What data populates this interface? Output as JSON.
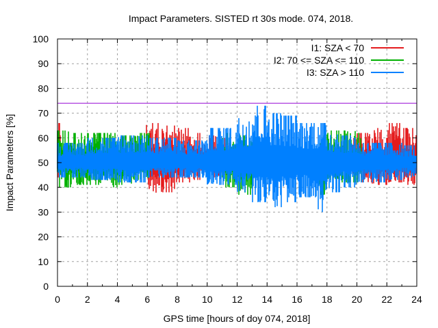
{
  "chart_data": {
    "type": "line",
    "style": "impulses",
    "title": "Impact Parameters. SISTED rt 30s mode. 074, 2018.",
    "xlabel": "GPS time [hours of doy 074, 2018]",
    "ylabel": "Impact Parameters [%]",
    "xlim": [
      0,
      24
    ],
    "ylim": [
      0,
      100
    ],
    "xticks": [
      "0",
      "2",
      "4",
      "6",
      "8",
      "10",
      "12",
      "14",
      "16",
      "18",
      "20",
      "22",
      "24"
    ],
    "yticks": [
      "0",
      "10",
      "20",
      "30",
      "40",
      "50",
      "60",
      "70",
      "80",
      "90",
      "100"
    ],
    "grid": true,
    "legend_position": "top-right",
    "reference_line": {
      "name": "threshold",
      "y": 74,
      "color": "#9400d3"
    },
    "series": [
      {
        "name": "I1: SZA < 70",
        "color": "#e41a1c",
        "active_hours": [
          [
            0,
            0.3
          ],
          [
            5.9,
            11.5
          ],
          [
            19.7,
            24
          ]
        ],
        "baseline": 50,
        "envelope_by_hour": [
          {
            "hour": 0,
            "max": 66,
            "min": 44
          },
          {
            "hour": 6,
            "max": 66,
            "min": 37
          },
          {
            "hour": 7,
            "max": 65,
            "min": 38
          },
          {
            "hour": 8,
            "max": 64,
            "min": 42
          },
          {
            "hour": 9,
            "max": 62,
            "min": 43
          },
          {
            "hour": 10,
            "max": 61,
            "min": 44
          },
          {
            "hour": 11,
            "max": 60,
            "min": 45
          },
          {
            "hour": 20,
            "max": 62,
            "min": 42
          },
          {
            "hour": 21,
            "max": 64,
            "min": 41
          },
          {
            "hour": 22,
            "max": 66,
            "min": 42
          },
          {
            "hour": 23,
            "max": 64,
            "min": 41
          }
        ]
      },
      {
        "name": "I2: 70 <= SZA <= 110",
        "color": "#00b000",
        "active_hours": [
          [
            0,
            6.2
          ],
          [
            11.0,
            13.0
          ],
          [
            17.5,
            20.3
          ]
        ],
        "baseline": 50,
        "envelope_by_hour": [
          {
            "hour": 0,
            "max": 63,
            "min": 40
          },
          {
            "hour": 1,
            "max": 62,
            "min": 41
          },
          {
            "hour": 2,
            "max": 62,
            "min": 41
          },
          {
            "hour": 3,
            "max": 62,
            "min": 40
          },
          {
            "hour": 4,
            "max": 61,
            "min": 41
          },
          {
            "hour": 5,
            "max": 62,
            "min": 43
          },
          {
            "hour": 11,
            "max": 62,
            "min": 40
          },
          {
            "hour": 12,
            "max": 61,
            "min": 37
          },
          {
            "hour": 18,
            "max": 63,
            "min": 43
          },
          {
            "hour": 19,
            "max": 63,
            "min": 42
          },
          {
            "hour": 20,
            "max": 62,
            "min": 42
          }
        ]
      },
      {
        "name": "I3: SZA > 110",
        "color": "#0080ff",
        "active_hours": [
          [
            0,
            24
          ]
        ],
        "baseline": 50,
        "envelope_by_hour": [
          {
            "hour": 0,
            "max": 58,
            "min": 44
          },
          {
            "hour": 2,
            "max": 60,
            "min": 43
          },
          {
            "hour": 4,
            "max": 61,
            "min": 42
          },
          {
            "hour": 6,
            "max": 60,
            "min": 44
          },
          {
            "hour": 8,
            "max": 59,
            "min": 44
          },
          {
            "hour": 10,
            "max": 64,
            "min": 41
          },
          {
            "hour": 12,
            "max": 68,
            "min": 38
          },
          {
            "hour": 13,
            "max": 73,
            "min": 34
          },
          {
            "hour": 14,
            "max": 70,
            "min": 32
          },
          {
            "hour": 15,
            "max": 69,
            "min": 34
          },
          {
            "hour": 16,
            "max": 66,
            "min": 36
          },
          {
            "hour": 17,
            "max": 66,
            "min": 30
          },
          {
            "hour": 18,
            "max": 62,
            "min": 38
          },
          {
            "hour": 19,
            "max": 61,
            "min": 40
          },
          {
            "hour": 20,
            "max": 58,
            "min": 42
          },
          {
            "hour": 22,
            "max": 58,
            "min": 43
          },
          {
            "hour": 23,
            "max": 57,
            "min": 44
          }
        ]
      }
    ]
  }
}
